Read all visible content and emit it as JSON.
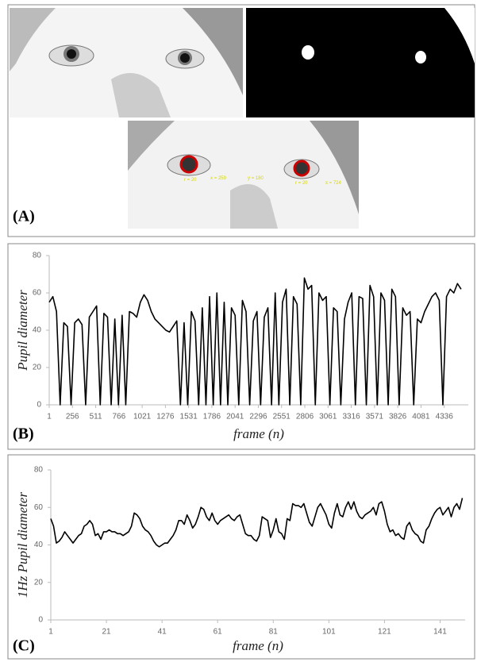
{
  "panel_a": {
    "label": "(A)",
    "annotations": [
      "r = 20",
      "x = 259",
      "y = 180",
      "r = 20",
      "x = 724"
    ]
  },
  "chart_data": [
    {
      "type": "line",
      "label": "(B)",
      "y_label": "Pupil diameter",
      "x_label": "frame (n)",
      "color": "#000000",
      "x": [
        1,
        41,
        81,
        121,
        161,
        201,
        241,
        281,
        321,
        361,
        401,
        441,
        481,
        521,
        561,
        601,
        641,
        681,
        721,
        761,
        801,
        841,
        881,
        921,
        961,
        1001,
        1041,
        1081,
        1121,
        1161,
        1201,
        1241,
        1281,
        1321,
        1361,
        1401,
        1441,
        1481,
        1521,
        1561,
        1601,
        1641,
        1681,
        1721,
        1761,
        1801,
        1841,
        1881,
        1921,
        1961,
        2001,
        2041,
        2081,
        2121,
        2161,
        2201,
        2241,
        2281,
        2321,
        2361,
        2401,
        2441,
        2481,
        2521,
        2561,
        2601,
        2641,
        2681,
        2721,
        2761,
        2801,
        2841,
        2881,
        2921,
        2961,
        3001,
        3041,
        3081,
        3121,
        3161,
        3201,
        3241,
        3281,
        3321,
        3361,
        3401,
        3441,
        3481,
        3521,
        3561,
        3601,
        3641,
        3681,
        3721,
        3761,
        3801,
        3841,
        3881,
        3921,
        3961,
        4001,
        4041,
        4081,
        4121,
        4161,
        4201,
        4241,
        4281,
        4321,
        4361,
        4401,
        4441,
        4481,
        4521
      ],
      "values": [
        55,
        58,
        50,
        0,
        44,
        42,
        0,
        44,
        46,
        43,
        0,
        47,
        50,
        53,
        0,
        49,
        47,
        0,
        46,
        0,
        48,
        0,
        50,
        49,
        47,
        55,
        59,
        56,
        50,
        46,
        44,
        42,
        40,
        39,
        42,
        45,
        0,
        44,
        0,
        50,
        45,
        0,
        52,
        0,
        58,
        0,
        60,
        0,
        55,
        0,
        52,
        48,
        0,
        56,
        50,
        0,
        45,
        50,
        0,
        47,
        52,
        0,
        60,
        0,
        55,
        62,
        0,
        58,
        54,
        0,
        68,
        62,
        64,
        0,
        60,
        56,
        58,
        0,
        52,
        50,
        0,
        46,
        55,
        60,
        0,
        58,
        57,
        0,
        64,
        58,
        0,
        60,
        56,
        0,
        62,
        58,
        0,
        52,
        48,
        50,
        0,
        46,
        44,
        50,
        54,
        58,
        60,
        56,
        0,
        58,
        62,
        60,
        65,
        62
      ],
      "xlim": [
        1,
        4600
      ],
      "xticks": [
        1,
        256,
        511,
        766,
        1021,
        1276,
        1531,
        1786,
        2041,
        2296,
        2551,
        2806,
        3061,
        3316,
        3571,
        3826,
        4081,
        4336
      ],
      "ylim": [
        0,
        80
      ],
      "yticks": [
        0,
        20,
        40,
        60,
        80
      ]
    },
    {
      "type": "line",
      "label": "(C)",
      "y_label": "1Hz Pupil diameter",
      "x_label": "frame (n)",
      "color": "#000000",
      "x": [
        1,
        2,
        3,
        4,
        5,
        6,
        7,
        8,
        9,
        10,
        11,
        12,
        13,
        14,
        15,
        16,
        17,
        18,
        19,
        20,
        21,
        22,
        23,
        24,
        25,
        26,
        27,
        28,
        29,
        30,
        31,
        32,
        33,
        34,
        35,
        36,
        37,
        38,
        39,
        40,
        41,
        42,
        43,
        44,
        45,
        46,
        47,
        48,
        49,
        50,
        51,
        52,
        53,
        54,
        55,
        56,
        57,
        58,
        59,
        60,
        61,
        62,
        63,
        64,
        65,
        66,
        67,
        68,
        69,
        70,
        71,
        72,
        73,
        74,
        75,
        76,
        77,
        78,
        79,
        80,
        81,
        82,
        83,
        84,
        85,
        86,
        87,
        88,
        89,
        90,
        91,
        92,
        93,
        94,
        95,
        96,
        97,
        98,
        99,
        100,
        101,
        102,
        103,
        104,
        105,
        106,
        107,
        108,
        109,
        110,
        111,
        112,
        113,
        114,
        115,
        116,
        117,
        118,
        119,
        120,
        121,
        122,
        123,
        124,
        125,
        126,
        127,
        128,
        129,
        130,
        131,
        132,
        133,
        134,
        135,
        136,
        137,
        138,
        139,
        140,
        141,
        142,
        143,
        144,
        145,
        146,
        147,
        148,
        149
      ],
      "values": [
        54,
        50,
        41,
        42,
        44,
        47,
        45,
        43,
        41,
        43,
        45,
        46,
        50,
        51,
        53,
        51,
        45,
        46,
        43,
        47,
        47,
        48,
        47,
        47,
        46,
        46,
        45,
        46,
        47,
        50,
        57,
        56,
        54,
        50,
        48,
        47,
        45,
        42,
        40,
        39,
        40,
        41,
        41,
        43,
        45,
        48,
        53,
        53,
        51,
        56,
        53,
        49,
        51,
        55,
        60,
        59,
        55,
        53,
        57,
        53,
        51,
        53,
        54,
        55,
        56,
        54,
        53,
        55,
        56,
        51,
        46,
        45,
        45,
        43,
        42,
        45,
        55,
        54,
        53,
        44,
        48,
        54,
        47,
        46,
        43,
        54,
        53,
        62,
        61,
        61,
        60,
        62,
        57,
        52,
        50,
        55,
        60,
        62,
        59,
        56,
        51,
        49,
        57,
        62,
        56,
        55,
        60,
        63,
        59,
        63,
        58,
        55,
        54,
        56,
        57,
        58,
        60,
        56,
        62,
        63,
        58,
        51,
        47,
        48,
        45,
        46,
        44,
        43,
        50,
        52,
        48,
        46,
        45,
        42,
        41,
        48,
        50,
        54,
        57,
        59,
        60,
        56,
        58,
        60,
        55,
        60,
        62,
        59,
        65
      ],
      "xlim": [
        1,
        150
      ],
      "xticks": [
        1,
        21,
        41,
        61,
        81,
        101,
        121,
        141
      ],
      "ylim": [
        0,
        80
      ],
      "yticks": [
        0,
        20,
        40,
        60,
        80
      ]
    }
  ]
}
